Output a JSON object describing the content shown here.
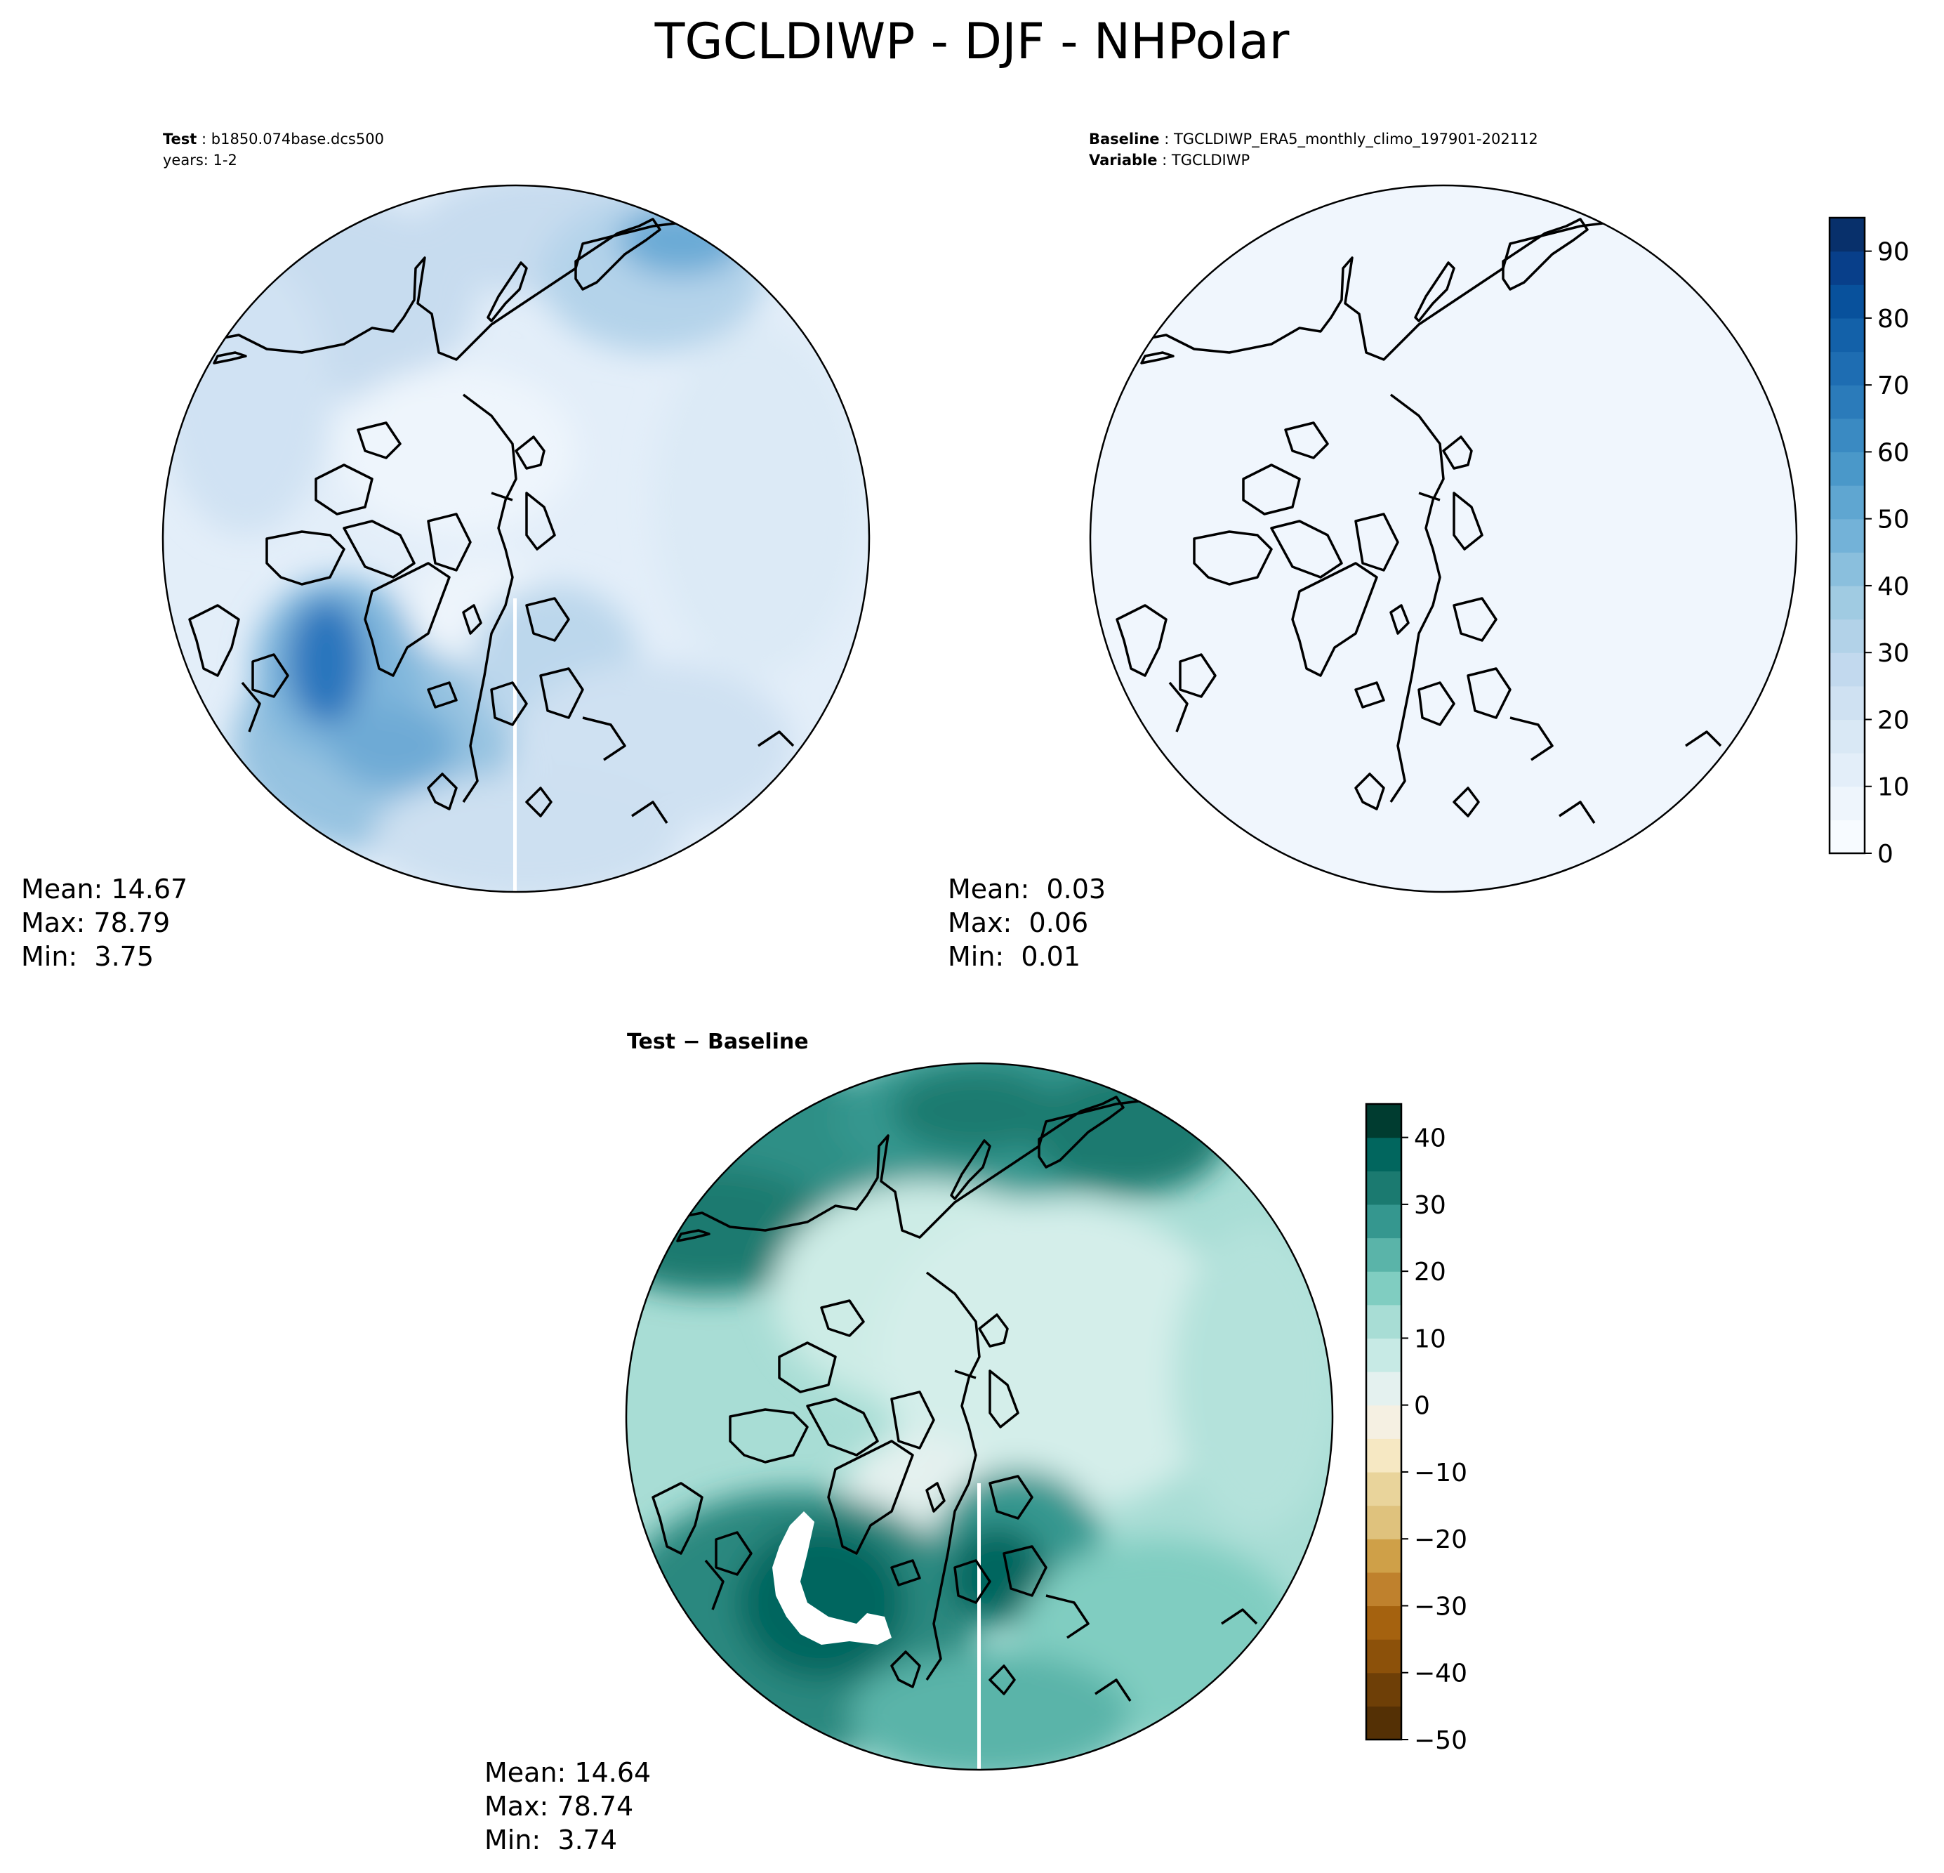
{
  "title": "TGCLDIWP - DJF - NHPolar",
  "panels": {
    "test": {
      "label_key": "Test",
      "label_value": "b1850.074base.dcs500",
      "label_line2": "years: 1-2",
      "stats": {
        "mean": "Mean: 14.67",
        "max": "Max: 78.79",
        "min": "Min:  3.75"
      }
    },
    "baseline": {
      "label_key": "Baseline",
      "label_value": "TGCLDIWP_ERA5_monthly_climo_197901-202112",
      "label2_key": "Variable",
      "label2_value": "TGCLDIWP",
      "stats": {
        "mean": "Mean:  0.03",
        "max": "Max:  0.06",
        "min": "Min:  0.01"
      }
    },
    "diff": {
      "title": "Test − Baseline",
      "stats": {
        "mean": "Mean: 14.64",
        "max": "Max: 78.74",
        "min": "Min:  3.74"
      }
    }
  },
  "colorbars": {
    "blues": {
      "ticks": [
        "0",
        "10",
        "20",
        "30",
        "40",
        "50",
        "60",
        "70",
        "80",
        "90"
      ],
      "range": [
        0,
        95
      ],
      "colors": [
        "#f7fbff",
        "#eef5fc",
        "#e3eef9",
        "#d9e8f5",
        "#cfe1f2",
        "#c2d9ee",
        "#b2d2e8",
        "#a0cbe2",
        "#8abfdd",
        "#73b2d8",
        "#5fa6d1",
        "#4a98c9",
        "#3a8ac2",
        "#2b7bba",
        "#1e6db2",
        "#1361a9",
        "#08519c",
        "#083f8a",
        "#08306b"
      ]
    },
    "brbg": {
      "ticks": [
        "40",
        "30",
        "20",
        "10",
        "0",
        "−10",
        "−20",
        "−30",
        "−40",
        "−50"
      ],
      "range": [
        -50,
        45
      ],
      "colors": [
        "#543005",
        "#6e3f07",
        "#8c510a",
        "#a5620f",
        "#bf812d",
        "#cfa048",
        "#dfc27d",
        "#e9d49b",
        "#f6e8c3",
        "#f5f0e2",
        "#e4f1ef",
        "#c7eae5",
        "#a8ddd5",
        "#80cdc1",
        "#5ab4a9",
        "#35978f",
        "#1b7a70",
        "#01665e",
        "#003c30"
      ]
    }
  }
}
